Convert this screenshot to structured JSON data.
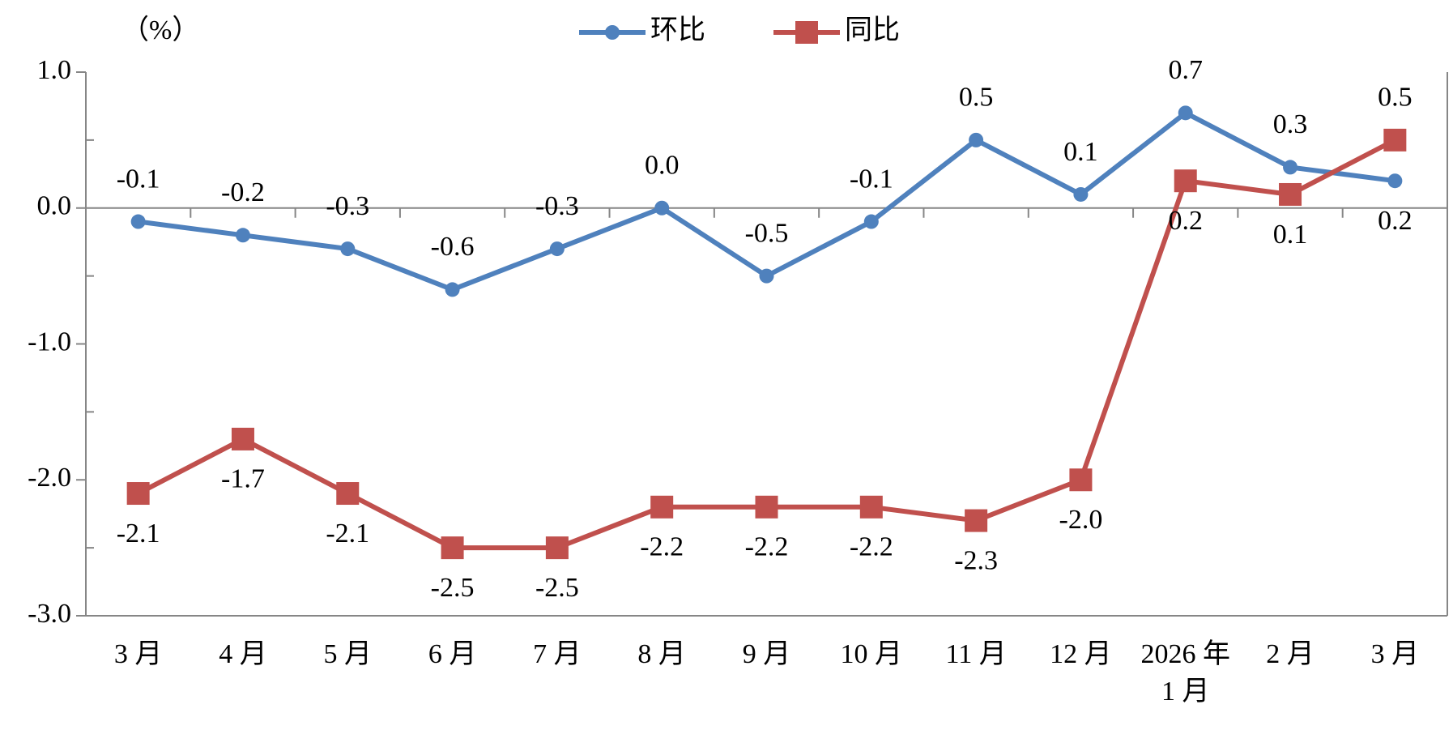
{
  "chart_data": {
    "type": "line",
    "ylabel": "（%）",
    "categories": [
      "3 月",
      "4 月",
      "5 月",
      "6 月",
      "7 月",
      "8 月",
      "9 月",
      "10 月",
      "11 月",
      "12 月",
      "2026 年 1 月",
      "2 月",
      "3 月"
    ],
    "series": [
      {
        "name": "环比",
        "color": "#4f81bd",
        "marker": "circle",
        "values": [
          -0.1,
          -0.2,
          -0.3,
          -0.6,
          -0.3,
          0.0,
          -0.5,
          -0.1,
          0.5,
          0.1,
          0.7,
          0.3,
          0.2
        ],
        "value_labels": [
          "-0.1",
          "-0.2",
          "-0.3",
          "-0.6",
          "-0.3",
          "0.0",
          "-0.5",
          "-0.1",
          "0.5",
          "0.1",
          "0.7",
          "0.3",
          "0.2"
        ]
      },
      {
        "name": "同比",
        "color": "#c0504d",
        "marker": "square",
        "values": [
          -2.1,
          -1.7,
          -2.1,
          -2.5,
          -2.5,
          -2.2,
          -2.2,
          -2.2,
          -2.3,
          -2.0,
          0.2,
          0.1,
          0.5
        ],
        "value_labels": [
          "-2.1",
          "-1.7",
          "-2.1",
          "-2.5",
          "-2.5",
          "-2.2",
          "-2.2",
          "-2.2",
          "-2.3",
          "-2.0",
          "0.2",
          "0.1",
          "0.5"
        ]
      }
    ],
    "ylim": [
      -3.0,
      1.0
    ],
    "yticks": [
      {
        "value": 1.0,
        "label": "1.0"
      },
      {
        "value": 0.0,
        "label": "0.0"
      },
      {
        "value": -1.0,
        "label": "-1.0"
      },
      {
        "value": -2.0,
        "label": "-2.0"
      },
      {
        "value": -3.0,
        "label": "-3.0"
      }
    ],
    "minor_yticks": [
      0.5,
      -0.5,
      -1.5,
      -2.5
    ],
    "legend": "top"
  }
}
